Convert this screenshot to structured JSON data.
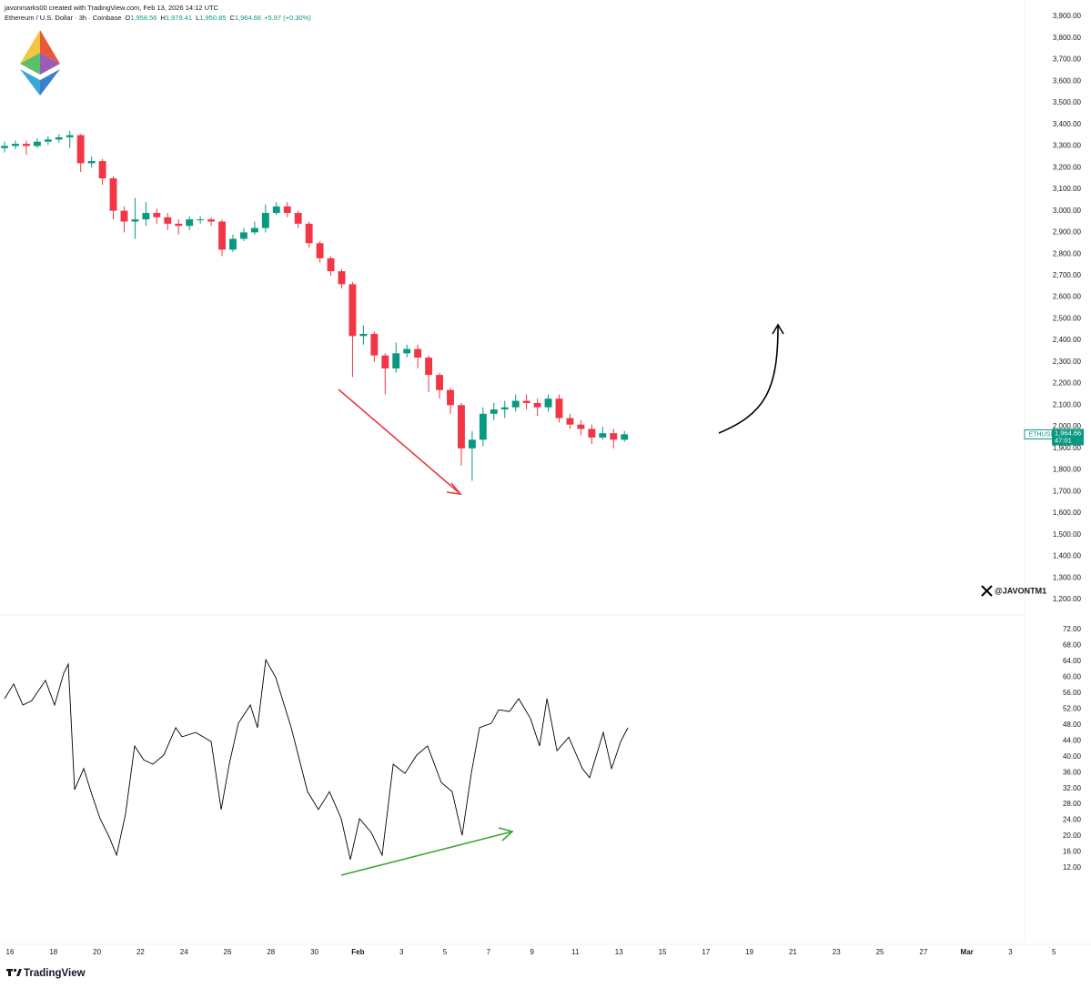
{
  "header": {
    "credit": "javonmarks00 created with TradingView.com, Feb 13, 2026 14:12 UTC",
    "symbol": "Ethereum / U.S. Dollar · 3h · Coinbase",
    "ohlc": [
      {
        "key": "O",
        "value": "1,958.56"
      },
      {
        "key": "H",
        "value": "1,979.41"
      },
      {
        "key": "L",
        "value": "1,950.85"
      },
      {
        "key": "C",
        "value": "1,964.66"
      }
    ],
    "change": "+5.97 (+0.30%)"
  },
  "price_label": {
    "symbol": "ETHUSD",
    "price": {
      "value": 1964.66,
      "label": "1,964.66"
    },
    "countdown": "47:01"
  },
  "watermark": "@JAVONTM1",
  "footer_logo": "TradingView",
  "chart_data": [
    {
      "type": "candlestick",
      "xlim": [
        -0.46,
        48.7
      ],
      "ylim": [
        1200,
        3900
      ],
      "up_color": "#089981",
      "down_color": "#f23645",
      "yticks": [
        {
          "value": 1200,
          "label": "1,200.00"
        },
        {
          "value": 1300,
          "label": "1,300.00"
        },
        {
          "value": 1400,
          "label": "1,400.00"
        },
        {
          "value": 1500,
          "label": "1,500.00"
        },
        {
          "value": 1600,
          "label": "1,600.00"
        },
        {
          "value": 1700,
          "label": "1,700.00"
        },
        {
          "value": 1800,
          "label": "1,800.00"
        },
        {
          "value": 1900,
          "label": "1,900.00"
        },
        {
          "value": 2000,
          "label": "2,000.00"
        },
        {
          "value": 2100,
          "label": "2,100.00"
        },
        {
          "value": 2200,
          "label": "2,200.00"
        },
        {
          "value": 2300,
          "label": "2,300.00"
        },
        {
          "value": 2400,
          "label": "2,400.00"
        },
        {
          "value": 2500,
          "label": "2,500.00"
        },
        {
          "value": 2600,
          "label": "2,600.00"
        },
        {
          "value": 2700,
          "label": "2,700.00"
        },
        {
          "value": 2800,
          "label": "2,800.00"
        },
        {
          "value": 2900,
          "label": "2,900.00"
        },
        {
          "value": 3000,
          "label": "3,000.00"
        },
        {
          "value": 3100,
          "label": "3,100.00"
        },
        {
          "value": 3200,
          "label": "3,200.00"
        },
        {
          "value": 3300,
          "label": "3,300.00"
        },
        {
          "value": 3400,
          "label": "3,400.00"
        },
        {
          "value": 3500,
          "label": "3,500.00"
        },
        {
          "value": 3600,
          "label": "3,600.00"
        },
        {
          "value": 3700,
          "label": "3,700.00"
        },
        {
          "value": 3800,
          "label": "3,800.00"
        },
        {
          "value": 3900,
          "label": "3,900.00"
        }
      ],
      "x": [
        -0.25,
        0.25,
        0.75,
        1.25,
        1.75,
        2.25,
        2.75,
        3.25,
        3.75,
        4.25,
        4.75,
        5.25,
        5.75,
        6.25,
        6.75,
        7.25,
        7.75,
        8.25,
        8.75,
        9.25,
        9.75,
        10.25,
        10.75,
        11.25,
        11.75,
        12.25,
        12.75,
        13.25,
        13.75,
        14.25,
        14.75,
        15.25,
        15.75,
        16.25,
        16.75,
        17.25,
        17.75,
        18.25,
        18.75,
        19.25,
        19.75,
        20.25,
        20.75,
        21.25,
        21.75,
        22.25,
        22.75,
        23.25,
        23.75,
        24.25,
        24.75,
        25.25,
        25.75,
        26.25,
        26.75,
        27.25,
        27.75,
        28.25
      ],
      "open": [
        3290,
        3300,
        3310,
        3300,
        3320,
        3330,
        3340,
        3350,
        3220,
        3230,
        3150,
        3000,
        2950,
        2960,
        2990,
        2970,
        2940,
        2930,
        2960,
        2960,
        2950,
        2820,
        2870,
        2900,
        2920,
        2990,
        3020,
        2990,
        2940,
        2850,
        2780,
        2720,
        2660,
        2420,
        2430,
        2330,
        2270,
        2340,
        2360,
        2320,
        2240,
        2170,
        2100,
        1900,
        1940,
        2060,
        2080,
        2090,
        2120,
        2110,
        2090,
        2130,
        2040,
        2010,
        1990,
        1950,
        1970,
        1940
      ],
      "high": [
        3320,
        3325,
        3325,
        3335,
        3345,
        3355,
        3370,
        3355,
        3250,
        3240,
        3160,
        3020,
        3060,
        3040,
        3010,
        2990,
        2960,
        2975,
        2975,
        2970,
        2960,
        2890,
        2920,
        2950,
        3030,
        3040,
        3040,
        3000,
        2950,
        2860,
        2790,
        2730,
        2670,
        2470,
        2440,
        2340,
        2390,
        2380,
        2380,
        2330,
        2250,
        2180,
        2110,
        1980,
        2090,
        2110,
        2120,
        2150,
        2150,
        2130,
        2150,
        2150,
        2060,
        2030,
        2010,
        2000,
        1990,
        1980
      ],
      "low": [
        3270,
        3285,
        3260,
        3290,
        3305,
        3315,
        3290,
        3180,
        3200,
        3120,
        2960,
        2900,
        2870,
        2930,
        2940,
        2910,
        2890,
        2910,
        2940,
        2930,
        2790,
        2810,
        2860,
        2890,
        2900,
        2980,
        2970,
        2920,
        2830,
        2760,
        2700,
        2640,
        2230,
        2380,
        2300,
        2150,
        2250,
        2320,
        2270,
        2160,
        2130,
        2060,
        1820,
        1750,
        1910,
        2030,
        2040,
        2070,
        2080,
        2050,
        2070,
        2020,
        1990,
        1960,
        1920,
        1940,
        1900,
        1930
      ],
      "close": [
        3300,
        3310,
        3300,
        3320,
        3330,
        3340,
        3350,
        3220,
        3230,
        3150,
        3000,
        2950,
        2960,
        2990,
        2970,
        2940,
        2930,
        2960,
        2960,
        2950,
        2820,
        2870,
        2900,
        2920,
        2990,
        3020,
        2990,
        2940,
        2850,
        2780,
        2720,
        2660,
        2420,
        2430,
        2330,
        2270,
        2340,
        2360,
        2320,
        2240,
        2170,
        2100,
        1900,
        1940,
        2060,
        2080,
        2090,
        2120,
        2110,
        2090,
        2130,
        2040,
        2010,
        1990,
        1950,
        1970,
        1940,
        1965
      ]
    },
    {
      "type": "line",
      "xlim": [
        -0.46,
        48.7
      ],
      "ylim": [
        12,
        72
      ],
      "color": "#000000",
      "yticks": [
        {
          "value": 12,
          "label": "12.00"
        },
        {
          "value": 16,
          "label": "16.00"
        },
        {
          "value": 20,
          "label": "20.00"
        },
        {
          "value": 24,
          "label": "24.00"
        },
        {
          "value": 28,
          "label": "28.00"
        },
        {
          "value": 32,
          "label": "32.00"
        },
        {
          "value": 36,
          "label": "36.00"
        },
        {
          "value": 40,
          "label": "40.00"
        },
        {
          "value": 44,
          "label": "44.00"
        },
        {
          "value": 48,
          "label": "48.00"
        },
        {
          "value": 52,
          "label": "52.00"
        },
        {
          "value": 56,
          "label": "56.00"
        },
        {
          "value": 60,
          "label": "60.00"
        },
        {
          "value": 64,
          "label": "64.00"
        },
        {
          "value": 68,
          "label": "68.00"
        },
        {
          "value": 72,
          "label": "72.00"
        }
      ],
      "xticks": [
        {
          "value": 0,
          "label": "16"
        },
        {
          "value": 2,
          "label": "18"
        },
        {
          "value": 4,
          "label": "20"
        },
        {
          "value": 6,
          "label": "22"
        },
        {
          "value": 8,
          "label": "24"
        },
        {
          "value": 10,
          "label": "26"
        },
        {
          "value": 12,
          "label": "28"
        },
        {
          "value": 14,
          "label": "30"
        },
        {
          "value": 16,
          "label": "Feb"
        },
        {
          "value": 18,
          "label": "3"
        },
        {
          "value": 20,
          "label": "5"
        },
        {
          "value": 22,
          "label": "7"
        },
        {
          "value": 24,
          "label": "9"
        },
        {
          "value": 26,
          "label": "11"
        },
        {
          "value": 28,
          "label": "13"
        },
        {
          "value": 30,
          "label": "15"
        },
        {
          "value": 32,
          "label": "17"
        },
        {
          "value": 34,
          "label": "19"
        },
        {
          "value": 36,
          "label": "21"
        },
        {
          "value": 38,
          "label": "23"
        },
        {
          "value": 40,
          "label": "25"
        },
        {
          "value": 42,
          "label": "27"
        },
        {
          "value": 44,
          "label": "Mar"
        },
        {
          "value": 46,
          "label": "3"
        },
        {
          "value": 48,
          "label": "5"
        }
      ],
      "x": [
        -0.25,
        0.17,
        0.59,
        1.0,
        1.63,
        2.05,
        2.47,
        2.68,
        2.97,
        3.39,
        3.72,
        4.14,
        4.56,
        4.9,
        5.31,
        5.73,
        6.15,
        6.57,
        7.07,
        7.62,
        7.91,
        8.54,
        9.25,
        9.71,
        10.08,
        10.5,
        11.05,
        11.38,
        11.76,
        12.22,
        12.93,
        13.68,
        14.18,
        14.69,
        15.23,
        15.65,
        16.07,
        16.61,
        17.11,
        17.62,
        18.16,
        18.7,
        19.2,
        19.83,
        20.33,
        20.79,
        21.21,
        21.59,
        22.13,
        22.47,
        22.97,
        23.39,
        23.93,
        24.35,
        24.69,
        25.15,
        25.69,
        26.32,
        26.65,
        27.28,
        27.66,
        28.08,
        28.41
      ],
      "values": [
        54.6,
        58.3,
        53,
        54.1,
        59.2,
        53,
        61,
        63.3,
        31.7,
        37,
        31.2,
        24.4,
        19.8,
        15.2,
        25.5,
        42.7,
        39.2,
        38.1,
        40.4,
        47.3,
        45,
        46.1,
        43.8,
        26.7,
        38.1,
        48.4,
        53,
        47.3,
        64.4,
        59.9,
        47.3,
        31.2,
        26.7,
        31.2,
        24.4,
        14.1,
        24.4,
        20.9,
        15.2,
        38.1,
        35.8,
        40.4,
        42.7,
        33.5,
        31.2,
        20.2,
        35.8,
        47.3,
        48.4,
        51.8,
        51.4,
        54.6,
        49.6,
        42.7,
        54.6,
        41.5,
        44.9,
        37,
        34.7,
        46.1,
        37,
        43.8,
        47.3
      ]
    }
  ]
}
